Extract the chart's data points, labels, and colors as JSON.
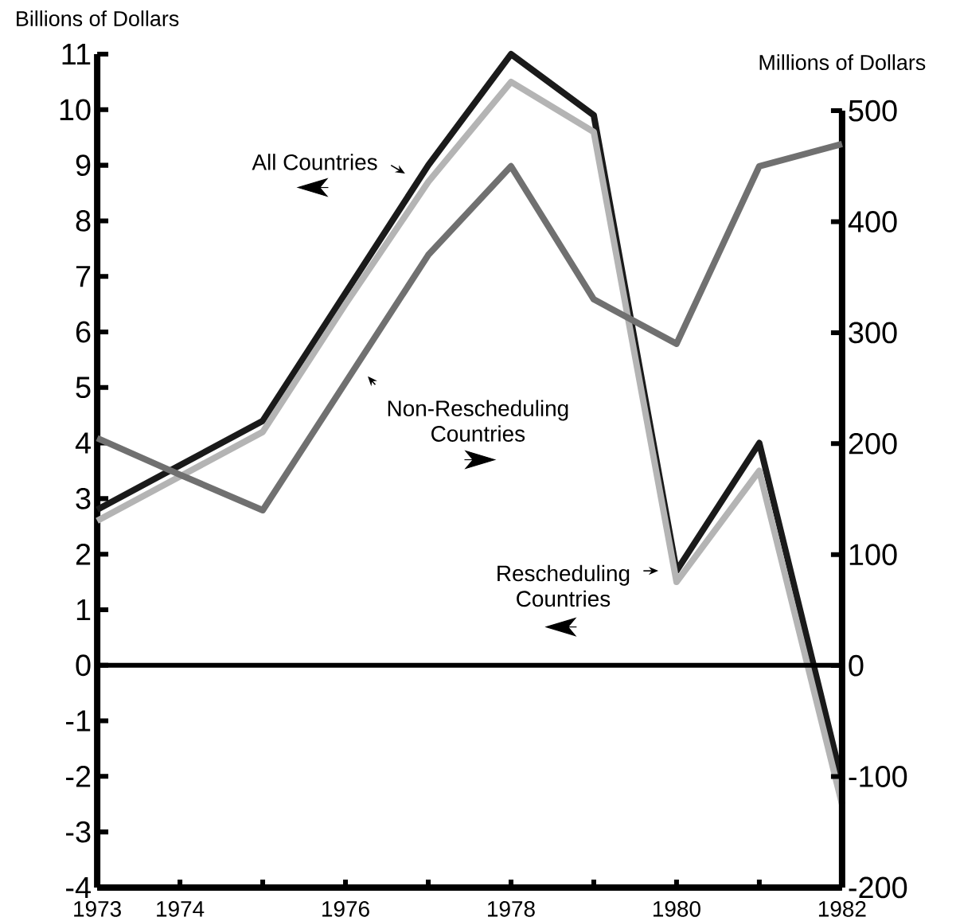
{
  "chart_data": {
    "type": "line",
    "x": [
      1973,
      1974,
      1975,
      1976,
      1977,
      1978,
      1979,
      1980,
      1981,
      1982
    ],
    "series": [
      {
        "name": "All Countries",
        "color": "#1a1a1a",
        "values": [
          2.8,
          3.6,
          4.4,
          6.7,
          9.0,
          11.0,
          9.9,
          1.7,
          4.0,
          -2.1
        ]
      },
      {
        "name": "Rescheduling Countries",
        "color": "#b4b4b4",
        "values": [
          2.6,
          3.4,
          4.2,
          6.5,
          8.7,
          10.5,
          9.6,
          1.5,
          3.5,
          -2.5
        ]
      },
      {
        "name": "Non-Rescheduling Countries",
        "color": "#707070",
        "axis": "y2",
        "values": [
          205,
          172,
          140,
          255,
          370,
          450,
          330,
          290,
          450,
          470
        ]
      }
    ],
    "ylabel": "Billions of Dollars",
    "y2label": "Millions of Dollars",
    "xlim": [
      1973,
      1982
    ],
    "xticks": [
      1973,
      1974,
      {
        "value": 1975,
        "label": null
      },
      1976,
      {
        "value": 1977,
        "label": null
      },
      1978,
      {
        "value": 1979,
        "label": null
      },
      1980,
      {
        "value": 1981,
        "label": null
      },
      1982
    ],
    "ylim": [
      -4,
      11
    ],
    "yticks": [
      -4,
      -3,
      -2,
      -1,
      0,
      1,
      2,
      3,
      4,
      5,
      6,
      7,
      8,
      9,
      10,
      11
    ],
    "y2lim": [
      -200,
      500
    ],
    "y2ticks": [
      -200,
      -100,
      0,
      100,
      200,
      300,
      400,
      500
    ],
    "ref_lines": [
      {
        "axis": "y",
        "value": 0
      }
    ],
    "marker": "none"
  }
}
